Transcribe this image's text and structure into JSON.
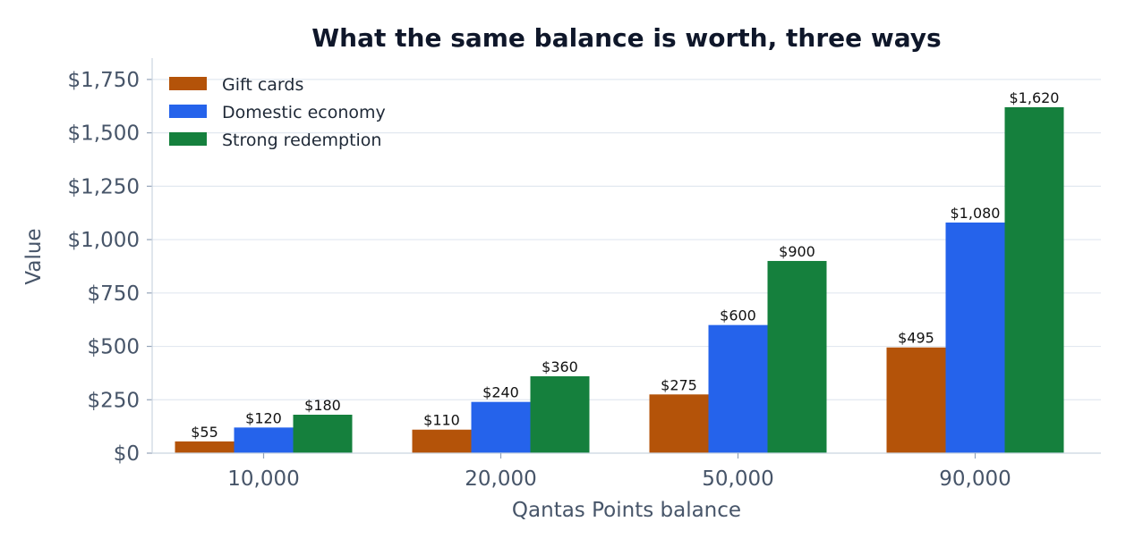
{
  "chart_data": {
    "type": "bar",
    "title": "What the same balance is worth, three ways",
    "xlabel": "Qantas Points balance",
    "ylabel": "Value",
    "categories": [
      "10,000",
      "20,000",
      "50,000",
      "90,000"
    ],
    "series": [
      {
        "name": "Gift cards",
        "color": "#b45309",
        "values": [
          55,
          110,
          275,
          495
        ],
        "labels": [
          "$55",
          "$110",
          "$275",
          "$495"
        ]
      },
      {
        "name": "Domestic economy",
        "color": "#2563eb",
        "values": [
          120,
          240,
          600,
          1080
        ],
        "labels": [
          "$120",
          "$240",
          "$600",
          "$1,080"
        ]
      },
      {
        "name": "Strong redemption",
        "color": "#15803d",
        "values": [
          180,
          360,
          900,
          1620
        ],
        "labels": [
          "$180",
          "$360",
          "$900",
          "$1,620"
        ]
      }
    ],
    "ylim": [
      0,
      1850
    ],
    "yticks": [
      0,
      250,
      500,
      750,
      1000,
      1250,
      1500,
      1750
    ],
    "ytick_labels": [
      "$0",
      "$250",
      "$500",
      "$750",
      "$1,000",
      "$1,250",
      "$1,500",
      "$1,750"
    ],
    "grid": true,
    "legend_position": "top-left"
  }
}
